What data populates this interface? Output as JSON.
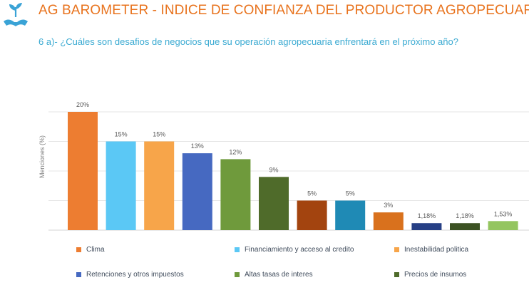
{
  "header": {
    "title": "AG BAROMETER - INDICE DE CONFIANZA DEL PRODUCTOR AGROPECUARIO",
    "subtitle": "6 a)- ¿Cuáles son desafios de negocios que su operación agropecuaria enfrentará en el próximo año?",
    "logo_icon": "hands-sprout-icon"
  },
  "colors": {
    "title": "#e8731e",
    "subtitle": "#3aaad2",
    "grid": "#e6e6e6"
  },
  "chart_data": {
    "type": "bar",
    "title": "",
    "xlabel": "",
    "ylabel": "Menciones (%)",
    "ylim": [
      0,
      20
    ],
    "grid": true,
    "legend_position": "bottom",
    "series": [
      {
        "name": "Clima",
        "value": 20,
        "label": "20%",
        "color": "#ed7d31"
      },
      {
        "name": "Financiamiento y acceso al credito",
        "value": 15,
        "label": "15%",
        "color": "#5bc8f5"
      },
      {
        "name": "Inestabilidad politica",
        "value": 15,
        "label": "15%",
        "color": "#f7a54a"
      },
      {
        "name": "Retenciones y otros impuestos",
        "value": 13,
        "label": "13%",
        "color": "#4669c1"
      },
      {
        "name": "Altas tasas de interes",
        "value": 12,
        "label": "12%",
        "color": "#6f9a3c"
      },
      {
        "name": "Precios de insumos",
        "value": 9,
        "label": "9%",
        "color": "#4f6b2a"
      },
      {
        "name": "",
        "value": 5,
        "label": "5%",
        "color": "#a3440f"
      },
      {
        "name": "",
        "value": 5,
        "label": "5%",
        "color": "#1f8ab5"
      },
      {
        "name": "",
        "value": 3,
        "label": "3%",
        "color": "#d9711d"
      },
      {
        "name": "",
        "value": 1.18,
        "label": "1,18%",
        "color": "#263f85"
      },
      {
        "name": "",
        "value": 1.18,
        "label": "1,18%",
        "color": "#3c5223"
      },
      {
        "name": "",
        "value": 1.53,
        "label": "1,53%",
        "color": "#94c560"
      }
    ]
  }
}
